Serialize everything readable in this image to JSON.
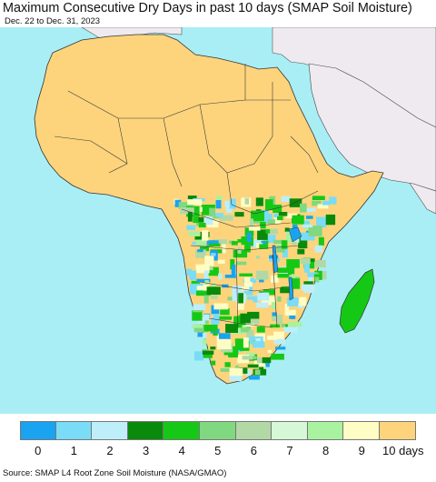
{
  "header": {
    "title": "Maximum Consecutive Dry Days in past 10 days (SMAP Soil Moisture)",
    "subtitle": "Dec. 22 to Dec. 31, 2023"
  },
  "map": {
    "region": "Africa",
    "ocean_color": "#a9eef5",
    "other_land_color": "#efeaf0",
    "border_color": "#333333"
  },
  "legend": {
    "items": [
      {
        "label": "0",
        "color": "#1aa3f0"
      },
      {
        "label": "1",
        "color": "#7adcf6"
      },
      {
        "label": "2",
        "color": "#bdeefa"
      },
      {
        "label": "3",
        "color": "#0a8a0a"
      },
      {
        "label": "4",
        "color": "#16c816"
      },
      {
        "label": "5",
        "color": "#80d880"
      },
      {
        "label": "6",
        "color": "#b2d8a6"
      },
      {
        "label": "7",
        "color": "#d6f8d6"
      },
      {
        "label": "8",
        "color": "#a8f2a0"
      },
      {
        "label": "9",
        "color": "#fdfdc4"
      },
      {
        "label": "10 days",
        "color": "#fdd47c"
      }
    ]
  },
  "footer": {
    "source": "Source: SMAP L4 Root Zone Soil Moisture (NASA/GMAO)"
  }
}
